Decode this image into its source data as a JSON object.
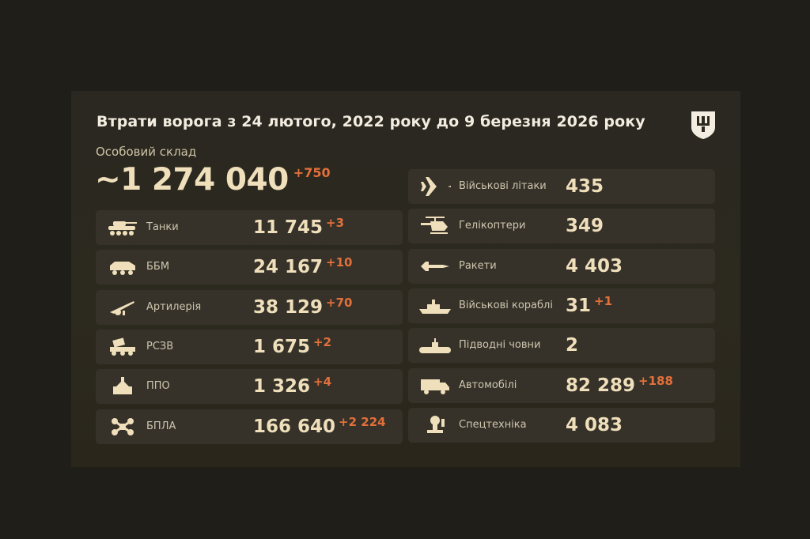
{
  "title": "Втрати ворога з 24 лютого, 2022 року до 9 березня 2026 року",
  "personnel": {
    "label": "Особовий склад",
    "value": "~1 274 040",
    "delta": "+750"
  },
  "colors": {
    "accent": "#e2703a",
    "number": "#efdfbb",
    "row_bg": "#36322a"
  },
  "left": [
    {
      "icon": "tank-icon",
      "label": "Танки",
      "value": "11 745",
      "delta": "+3"
    },
    {
      "icon": "apc-icon",
      "label": "ББМ",
      "value": "24 167",
      "delta": "+10"
    },
    {
      "icon": "artillery-icon",
      "label": "Артилерія",
      "value": "38 129",
      "delta": "+70"
    },
    {
      "icon": "mlrs-icon",
      "label": "РСЗВ",
      "value": "1 675",
      "delta": "+2"
    },
    {
      "icon": "air-defense-icon",
      "label": "ППО",
      "value": "1 326",
      "delta": "+4"
    },
    {
      "icon": "drone-icon",
      "label": "БПЛА",
      "value": "166 640",
      "delta": "+2 224"
    }
  ],
  "right": [
    {
      "icon": "jet-icon",
      "label": "Військові літаки",
      "value": "435",
      "delta": ""
    },
    {
      "icon": "helicopter-icon",
      "label": "Гелікоптери",
      "value": "349",
      "delta": ""
    },
    {
      "icon": "missile-icon",
      "label": "Ракети",
      "value": "4 403",
      "delta": ""
    },
    {
      "icon": "warship-icon",
      "label": "Військові кораблі",
      "value": "31",
      "delta": "+1"
    },
    {
      "icon": "submarine-icon",
      "label": "Підводні човни",
      "value": "2",
      "delta": ""
    },
    {
      "icon": "truck-icon",
      "label": "Автомобілі",
      "value": "82 289",
      "delta": "+188"
    },
    {
      "icon": "special-equipment-icon",
      "label": "Спецтехніка",
      "value": "4 083",
      "delta": ""
    }
  ]
}
